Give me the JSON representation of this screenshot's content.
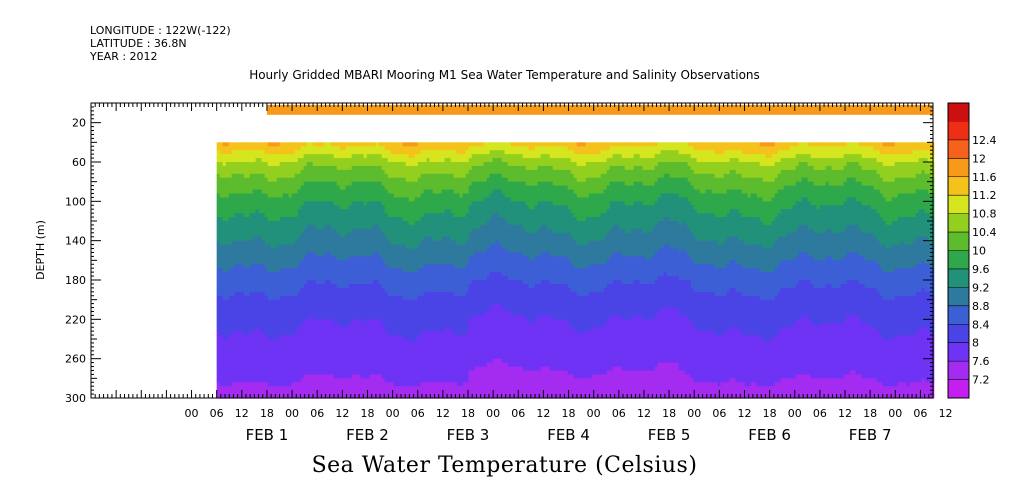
{
  "header": {
    "longitude": "LONGITUDE : 122W(-122)",
    "latitude": "LATITUDE : 36.8N",
    "year": "YEAR : 2012"
  },
  "chart_data": {
    "type": "heatmap",
    "title": "Hourly Gridded MBARI Mooring M1 Sea Water Temperature and Salinity Observations",
    "xlabel": "",
    "ylabel": "DEPTH (m)",
    "colorbar_label": "Sea Water Temperature (Celsius)",
    "ylim": [
      300,
      0
    ],
    "y_ticks": [
      20,
      60,
      100,
      140,
      180,
      220,
      260,
      300
    ],
    "x_range_hours": [
      -30,
      171
    ],
    "x_hour_ticks": [
      "00",
      "06",
      "12",
      "18",
      "00",
      "06",
      "12",
      "18",
      "00",
      "06",
      "12",
      "18",
      "00",
      "06",
      "12",
      "18",
      "00",
      "06",
      "12",
      "18",
      "00",
      "06",
      "12",
      "18",
      "00",
      "06",
      "12",
      "18",
      "00",
      "06",
      "12"
    ],
    "x_day_labels": [
      "FEB  1",
      "FEB  2",
      "FEB  3",
      "FEB  4",
      "FEB  5",
      "FEB  6",
      "FEB  7"
    ],
    "colorbar": {
      "levels": [
        7.2,
        7.6,
        8,
        8.4,
        8.8,
        9.2,
        9.6,
        10,
        10.4,
        10.8,
        11.2,
        11.6,
        12,
        12.4
      ],
      "level_labels": [
        "7.2",
        "7.6",
        "8",
        "8.4",
        "8.8",
        "9.2",
        "9.6",
        "10",
        "10.4",
        "10.8",
        "11.2",
        "11.6",
        "12",
        "12.4"
      ],
      "colors": [
        "#c41ef0",
        "#a42cf0",
        "#6e33f5",
        "#4a44e6",
        "#3d5fd6",
        "#2e7a9e",
        "#22917a",
        "#2ea84a",
        "#5cbc2e",
        "#93cf1e",
        "#d6e61e",
        "#f4c21a",
        "#f79a1a",
        "#f5621e",
        "#ee2f16",
        "#cc0f10"
      ]
    },
    "surface_temp_c": 11.8,
    "surface_depth_m": 12,
    "data_start_hour": 0,
    "data_top_depth_m": 40,
    "profile_depths_m": [
      40,
      60,
      80,
      100,
      120,
      140,
      160,
      180,
      200,
      220,
      240,
      260,
      280,
      300
    ],
    "profile_temps_c": [
      11.4,
      10.6,
      10.1,
      9.7,
      9.4,
      9.1,
      8.8,
      8.5,
      8.25,
      8.05,
      7.9,
      7.75,
      7.6,
      7.45
    ]
  }
}
